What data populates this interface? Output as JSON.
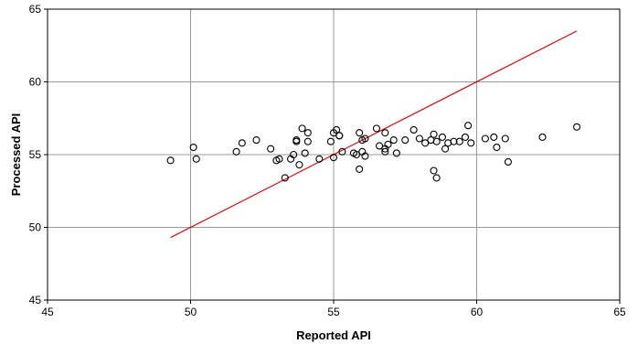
{
  "chart_data": {
    "type": "scatter",
    "title": "",
    "xlabel": "Reported API",
    "ylabel": "Processed API",
    "xlim": [
      45,
      65
    ],
    "ylim": [
      45,
      65
    ],
    "xticks": [
      45,
      50,
      55,
      60,
      65
    ],
    "yticks": [
      45,
      50,
      55,
      60,
      65
    ],
    "grid": true,
    "legend": "none",
    "marker_color": "#000000",
    "line_color": "#e00000",
    "points": [
      [
        49.3,
        54.6
      ],
      [
        50.1,
        55.5
      ],
      [
        50.2,
        54.7
      ],
      [
        51.6,
        55.2
      ],
      [
        51.8,
        55.8
      ],
      [
        52.3,
        56.0
      ],
      [
        52.8,
        55.4
      ],
      [
        53.0,
        54.6
      ],
      [
        53.1,
        54.7
      ],
      [
        53.3,
        53.4
      ],
      [
        53.5,
        54.7
      ],
      [
        53.6,
        55.0
      ],
      [
        53.7,
        56.0
      ],
      [
        53.7,
        55.9
      ],
      [
        53.8,
        54.3
      ],
      [
        53.9,
        56.8
      ],
      [
        54.0,
        55.1
      ],
      [
        54.1,
        56.5
      ],
      [
        54.1,
        55.9
      ],
      [
        54.5,
        54.7
      ],
      [
        54.9,
        55.9
      ],
      [
        55.0,
        56.5
      ],
      [
        55.0,
        54.8
      ],
      [
        55.1,
        56.7
      ],
      [
        55.2,
        56.3
      ],
      [
        55.2,
        56.3
      ],
      [
        55.3,
        55.2
      ],
      [
        55.7,
        55.1
      ],
      [
        55.8,
        55.0
      ],
      [
        55.9,
        56.5
      ],
      [
        55.9,
        54.0
      ],
      [
        56.0,
        55.2
      ],
      [
        56.0,
        56.0
      ],
      [
        56.1,
        56.1
      ],
      [
        56.1,
        54.9
      ],
      [
        56.5,
        56.8
      ],
      [
        56.6,
        55.6
      ],
      [
        56.8,
        55.4
      ],
      [
        56.8,
        55.2
      ],
      [
        56.8,
        56.5
      ],
      [
        56.9,
        55.7
      ],
      [
        57.1,
        56.0
      ],
      [
        57.2,
        55.1
      ],
      [
        57.5,
        56.0
      ],
      [
        57.8,
        56.7
      ],
      [
        58.0,
        56.1
      ],
      [
        58.2,
        55.8
      ],
      [
        58.4,
        56.0
      ],
      [
        58.5,
        56.4
      ],
      [
        58.5,
        53.9
      ],
      [
        58.6,
        53.4
      ],
      [
        58.6,
        55.9
      ],
      [
        58.8,
        56.2
      ],
      [
        58.9,
        55.4
      ],
      [
        59.0,
        55.8
      ],
      [
        59.2,
        55.9
      ],
      [
        59.4,
        55.9
      ],
      [
        59.6,
        56.2
      ],
      [
        59.7,
        57.0
      ],
      [
        59.8,
        55.8
      ],
      [
        60.3,
        56.1
      ],
      [
        60.6,
        56.2
      ],
      [
        60.7,
        55.5
      ],
      [
        61.0,
        56.1
      ],
      [
        61.1,
        54.5
      ],
      [
        62.3,
        56.2
      ],
      [
        63.5,
        56.9
      ]
    ],
    "line": {
      "x": [
        49.3,
        63.5
      ],
      "y": [
        49.3,
        63.5
      ]
    }
  }
}
